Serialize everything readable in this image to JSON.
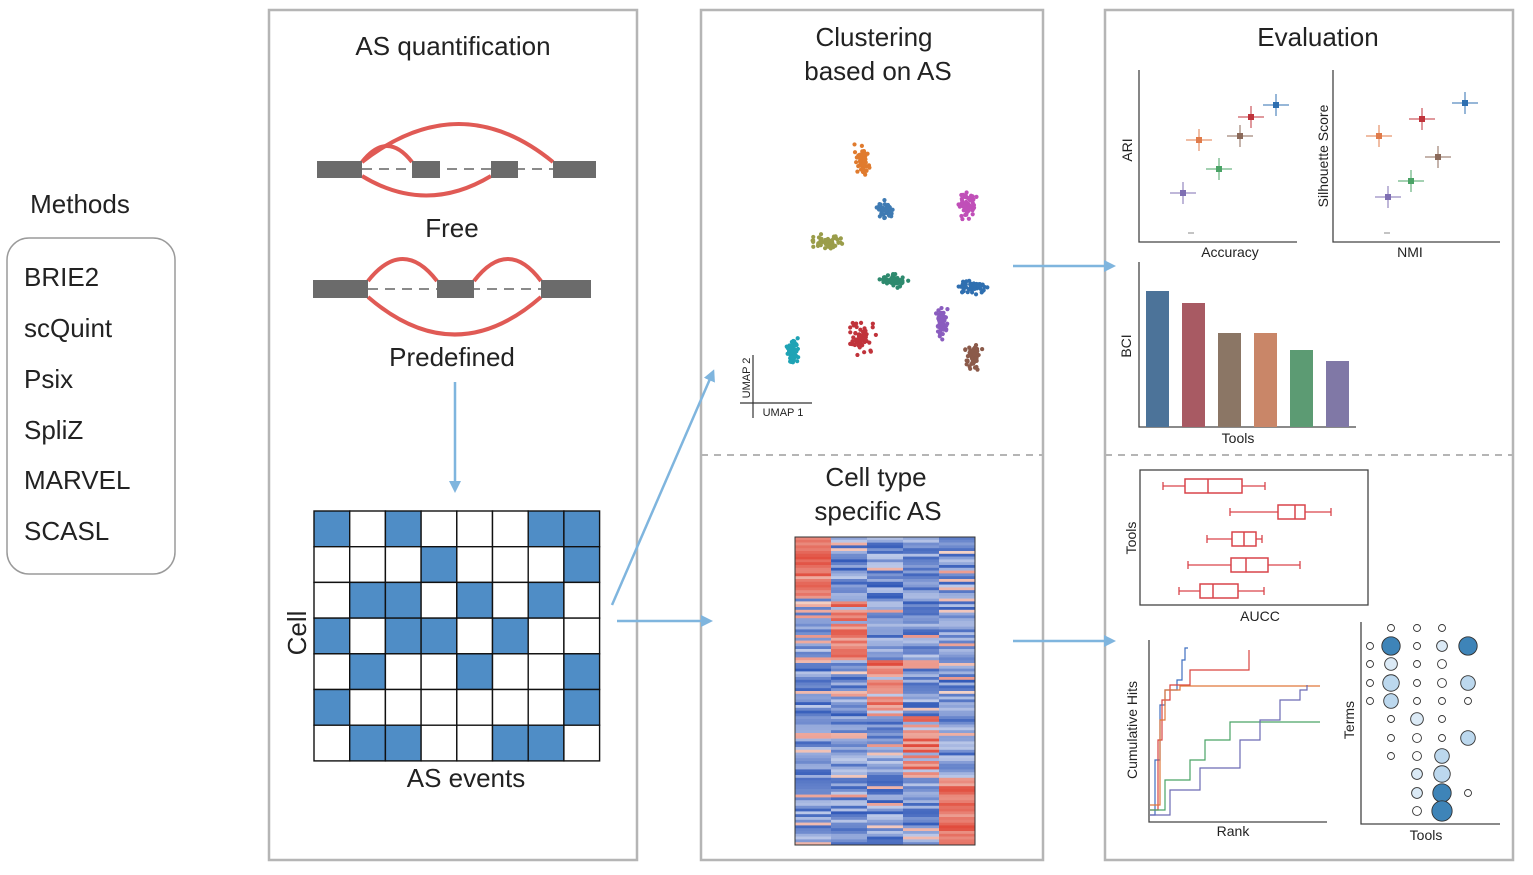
{
  "methods": {
    "title": "Methods",
    "items": [
      "BRIE2",
      "scQuint",
      "Psix",
      "SpliZ",
      "MARVEL",
      "SCASL"
    ]
  },
  "quant": {
    "title": "AS quantification",
    "free_label": "Free",
    "predefined_label": "Predefined",
    "matrix_row_label": "Cell",
    "matrix_col_label": "AS events",
    "matrix": [
      [
        1,
        0,
        1,
        0,
        0,
        0,
        1,
        1
      ],
      [
        0,
        0,
        0,
        1,
        0,
        0,
        0,
        1
      ],
      [
        0,
        1,
        1,
        0,
        1,
        0,
        1,
        0
      ],
      [
        1,
        0,
        1,
        1,
        0,
        1,
        0,
        0
      ],
      [
        0,
        1,
        0,
        0,
        1,
        0,
        0,
        1
      ],
      [
        1,
        0,
        0,
        0,
        0,
        0,
        0,
        1
      ],
      [
        0,
        1,
        1,
        0,
        0,
        1,
        1,
        0
      ]
    ],
    "matrix_fill_color": "#4f8dc6"
  },
  "clustering": {
    "title_line1": "Clustering",
    "title_line2": "based on AS",
    "axis_x": "UMAP 1",
    "axis_y": "UMAP 2"
  },
  "specific": {
    "title_line1": "Cell type",
    "title_line2": "specific AS"
  },
  "evaluation": {
    "title": "Evaluation",
    "scatter1": {
      "ylabel": "ARI",
      "xlabel": "Accuracy"
    },
    "scatter2": {
      "ylabel": "Silhouette Score",
      "xlabel": "NMI"
    },
    "bars": {
      "ylabel": "BCI",
      "xlabel": "Tools"
    },
    "box": {
      "ylabel": "Tools",
      "xlabel": "AUCC"
    },
    "hits": {
      "ylabel": "Cumulative Hits",
      "xlabel": "Rank"
    },
    "dots": {
      "ylabel": "Terms",
      "xlabel": "Tools"
    }
  },
  "colors": {
    "panel_border": "#b5b5b5",
    "arrow": "#7fb5de",
    "junction": "#e05a55",
    "exon": "#6b6b6b",
    "tools": [
      "#4c7399",
      "#a85a63",
      "#8b7665",
      "#c98668",
      "#5c9b73",
      "#8078a6"
    ]
  }
}
